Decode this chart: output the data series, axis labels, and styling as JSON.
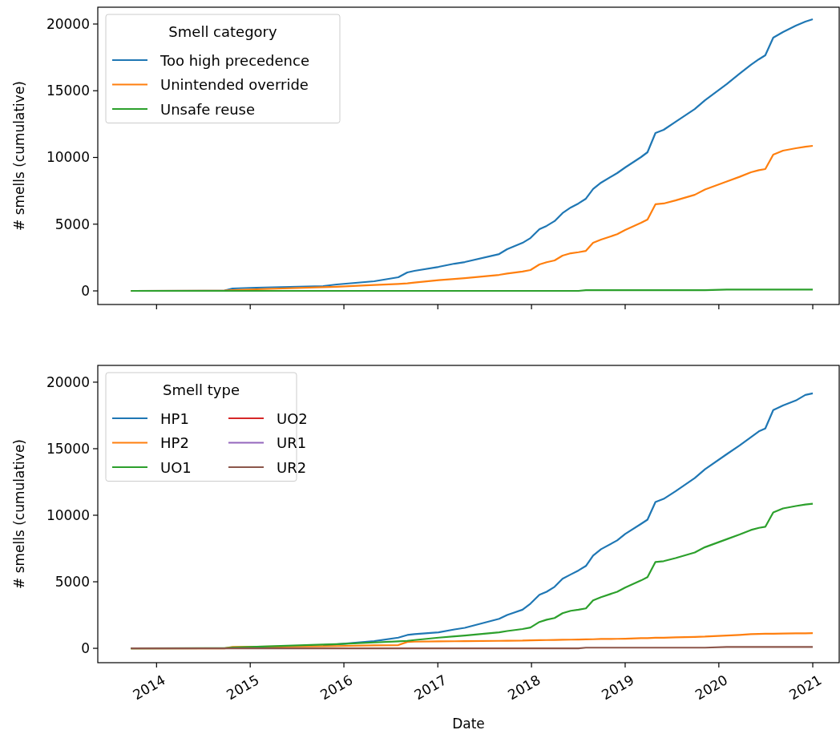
{
  "chart_data": [
    {
      "type": "line",
      "ylabel": "# smells (cumulative)",
      "legend_title": "Smell category",
      "legend": "top left",
      "tick_labels": "y",
      "xlim": [
        "2013-05-17",
        "2021-04-14"
      ],
      "xticks": [
        "2014",
        "2015",
        "2016",
        "2017",
        "2018",
        "2019",
        "2020",
        "2021"
      ],
      "ylim": [
        -1020,
        21260
      ],
      "yticks": [
        0,
        5000,
        10000,
        15000,
        20000
      ],
      "x": [
        "2013-09-23",
        "2014-09-23",
        "2014-10-24",
        "2015-01-25",
        "2015-10-12",
        "2015-12-04",
        "2016-04-28",
        "2016-07-31",
        "2016-09-04",
        "2016-10-02",
        "2017-01-04",
        "2017-03-07",
        "2017-04-16",
        "2017-08-28",
        "2017-09-28",
        "2017-11-27",
        "2017-12-28",
        "2018-02-01",
        "2018-03-01",
        "2018-04-01",
        "2018-05-02",
        "2018-06-03",
        "2018-07-03",
        "2018-08-01",
        "2018-08-29",
        "2018-09-29",
        "2018-12-01",
        "2019-01-01",
        "2019-03-04",
        "2019-03-29",
        "2019-04-29",
        "2019-05-31",
        "2019-07-16",
        "2019-09-29",
        "2019-11-08",
        "2020-02-01",
        "2020-03-22",
        "2020-05-05",
        "2020-06-05",
        "2020-06-30",
        "2020-07-31",
        "2020-09-07",
        "2020-10-27",
        "2020-12-03",
        "2021-01-01"
      ],
      "series": [
        {
          "name": "Too high precedence",
          "color": "#1f77b4",
          "values": [
            0,
            20,
            180,
            240,
            360,
            480,
            720,
            1020,
            1380,
            1500,
            1800,
            2040,
            2160,
            2760,
            3120,
            3600,
            3960,
            4620,
            4870,
            5230,
            5830,
            6250,
            6550,
            6910,
            7630,
            8110,
            8830,
            9250,
            10030,
            10390,
            11830,
            12070,
            12670,
            13630,
            14290,
            15500,
            16280,
            16940,
            17360,
            17660,
            18980,
            19400,
            19880,
            20180,
            20360
          ]
        },
        {
          "name": "Unintended override",
          "color": "#ff7f0e",
          "values": [
            0,
            20,
            60,
            120,
            280,
            310,
            440,
            520,
            560,
            620,
            800,
            900,
            960,
            1200,
            1300,
            1450,
            1560,
            1980,
            2150,
            2280,
            2640,
            2820,
            2900,
            3000,
            3600,
            3840,
            4250,
            4560,
            5100,
            5350,
            6490,
            6550,
            6780,
            7200,
            7600,
            8200,
            8550,
            8890,
            9050,
            9130,
            10210,
            10510,
            10690,
            10800,
            10870
          ]
        },
        {
          "name": "Unsafe reuse",
          "color": "#2ca02c",
          "values": [
            0,
            0,
            0,
            0,
            0,
            0,
            0,
            0,
            0,
            0,
            0,
            0,
            0,
            0,
            0,
            0,
            0,
            0,
            0,
            0,
            0,
            0,
            0,
            50,
            50,
            50,
            50,
            50,
            50,
            50,
            50,
            50,
            50,
            50,
            50,
            100,
            100,
            100,
            100,
            100,
            100,
            100,
            100,
            100,
            100
          ]
        }
      ]
    },
    {
      "type": "line",
      "xlabel": "Date",
      "ylabel": "# smells (cumulative)",
      "legend_title": "Smell type",
      "legend": "top left",
      "xlim": [
        "2013-05-17",
        "2021-04-14"
      ],
      "xticks": [
        "2014",
        "2015",
        "2016",
        "2017",
        "2018",
        "2019",
        "2020",
        "2021"
      ],
      "ylim": [
        -1080,
        21260
      ],
      "yticks": [
        0,
        5000,
        10000,
        15000,
        20000
      ],
      "x": [
        "2013-09-23",
        "2014-09-23",
        "2014-10-24",
        "2015-01-25",
        "2015-10-12",
        "2015-12-04",
        "2016-04-28",
        "2016-07-31",
        "2016-09-04",
        "2016-10-02",
        "2017-01-04",
        "2017-03-07",
        "2017-04-16",
        "2017-08-28",
        "2017-09-28",
        "2017-11-27",
        "2017-12-28",
        "2018-02-01",
        "2018-03-01",
        "2018-04-01",
        "2018-05-02",
        "2018-06-03",
        "2018-07-03",
        "2018-08-01",
        "2018-08-29",
        "2018-09-29",
        "2018-12-01",
        "2019-01-01",
        "2019-03-04",
        "2019-03-29",
        "2019-04-29",
        "2019-05-31",
        "2019-07-16",
        "2019-09-29",
        "2019-11-08",
        "2020-02-01",
        "2020-03-22",
        "2020-05-05",
        "2020-06-05",
        "2020-06-30",
        "2020-07-31",
        "2020-09-07",
        "2020-10-27",
        "2020-12-03",
        "2021-01-01"
      ],
      "series": [
        {
          "name": "HP1",
          "color": "#1f77b4",
          "values": [
            null,
            null,
            null,
            null,
            240,
            300,
            540,
            800,
            1000,
            1060,
            1200,
            1420,
            1540,
            2220,
            2500,
            2900,
            3360,
            4020,
            4250,
            4620,
            5230,
            5550,
            5850,
            6190,
            6970,
            7450,
            8110,
            8590,
            9350,
            9670,
            10990,
            11230,
            11800,
            12790,
            13450,
            14590,
            15250,
            15860,
            16300,
            16520,
            17900,
            18250,
            18620,
            19040,
            19160
          ]
        },
        {
          "name": "HP2",
          "color": "#ff7f0e",
          "values": [
            0,
            0,
            100,
            120,
            160,
            170,
            220,
            240,
            480,
            500,
            520,
            530,
            540,
            560,
            570,
            580,
            600,
            610,
            620,
            630,
            640,
            650,
            660,
            670,
            680,
            700,
            710,
            720,
            760,
            770,
            790,
            800,
            820,
            860,
            880,
            960,
            1010,
            1060,
            1080,
            1090,
            1100,
            1110,
            1120,
            1130,
            1140
          ]
        },
        {
          "name": "UO1",
          "color": "#2ca02c",
          "values": [
            0,
            20,
            60,
            120,
            280,
            310,
            440,
            520,
            560,
            620,
            800,
            900,
            960,
            1200,
            1300,
            1450,
            1560,
            1980,
            2150,
            2280,
            2640,
            2820,
            2900,
            3000,
            3600,
            3840,
            4250,
            4560,
            5100,
            5350,
            6490,
            6550,
            6780,
            7200,
            7600,
            8200,
            8550,
            8890,
            9050,
            9130,
            10210,
            10510,
            10690,
            10800,
            10870
          ]
        },
        {
          "name": "UO2",
          "color": "#d62728",
          "values": [
            null,
            null,
            null,
            null,
            null,
            null,
            null,
            null,
            null,
            null,
            null,
            null,
            null,
            null,
            null,
            null,
            null,
            null,
            null,
            null,
            null,
            null,
            null,
            null,
            null,
            null,
            null,
            null,
            null,
            null,
            null,
            null,
            null,
            null,
            null,
            null,
            null,
            null,
            null,
            null,
            null,
            null,
            null,
            null,
            null
          ]
        },
        {
          "name": "UR1",
          "color": "#9467bd",
          "values": [
            null,
            null,
            null,
            null,
            null,
            null,
            null,
            null,
            null,
            null,
            null,
            null,
            null,
            null,
            null,
            null,
            null,
            null,
            null,
            null,
            null,
            null,
            null,
            null,
            null,
            null,
            null,
            null,
            null,
            null,
            null,
            null,
            null,
            null,
            null,
            null,
            null,
            null,
            null,
            null,
            null,
            null,
            null,
            null,
            null
          ]
        },
        {
          "name": "UR2",
          "color": "#8c564b",
          "values": [
            0,
            0,
            0,
            0,
            0,
            0,
            0,
            0,
            0,
            0,
            0,
            0,
            0,
            0,
            0,
            0,
            0,
            0,
            0,
            0,
            0,
            0,
            0,
            50,
            50,
            50,
            50,
            50,
            50,
            50,
            50,
            50,
            50,
            50,
            50,
            100,
            100,
            100,
            100,
            100,
            100,
            100,
            100,
            100,
            100
          ]
        }
      ]
    }
  ]
}
